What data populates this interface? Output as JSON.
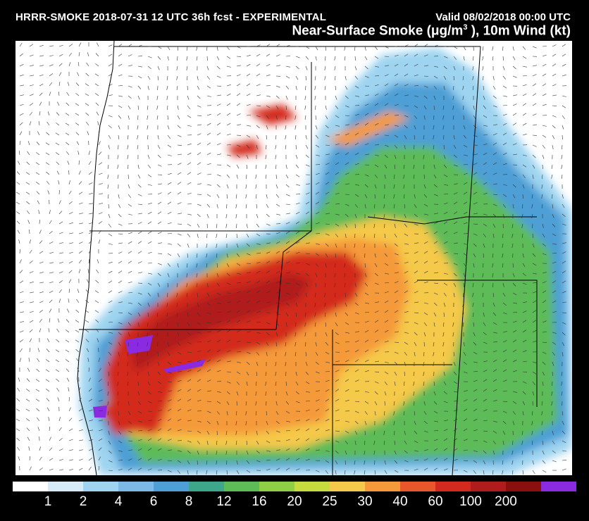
{
  "header": {
    "left": "HRRR-SMOKE 2018-07-31 12 UTC 36h fcst - EXPERIMENTAL",
    "right": "Valid 08/02/2018 00:00 UTC",
    "title_main": "Near-Surface Smoke (μg/m",
    "title_sup": "3",
    "title_tail": " ), 10m Wind (kt)"
  },
  "legend": {
    "ticks": [
      "1",
      "2",
      "4",
      "6",
      "8",
      "12",
      "16",
      "20",
      "25",
      "30",
      "40",
      "60",
      "100",
      "200"
    ],
    "colors": [
      "#ffffff",
      "#d6ebf7",
      "#9ed4f0",
      "#7cb9e6",
      "#4e9fd5",
      "#3ea68a",
      "#5dbb58",
      "#8ecf46",
      "#c6dc3e",
      "#f5c94a",
      "#f59a3a",
      "#e8562b",
      "#d32a1f",
      "#b01c1c",
      "#8a1010",
      "#8a2be2"
    ]
  },
  "map": {
    "description_colors": {
      "ocean": "#ffffff",
      "light": "#9ed4f0",
      "blue": "#4e9fd5",
      "green": "#5dbb58",
      "yellow": "#f5c94a",
      "orange": "#f59a3a",
      "red": "#d32a1f",
      "darkred": "#b01c1c",
      "purple": "#8a2be2"
    }
  }
}
